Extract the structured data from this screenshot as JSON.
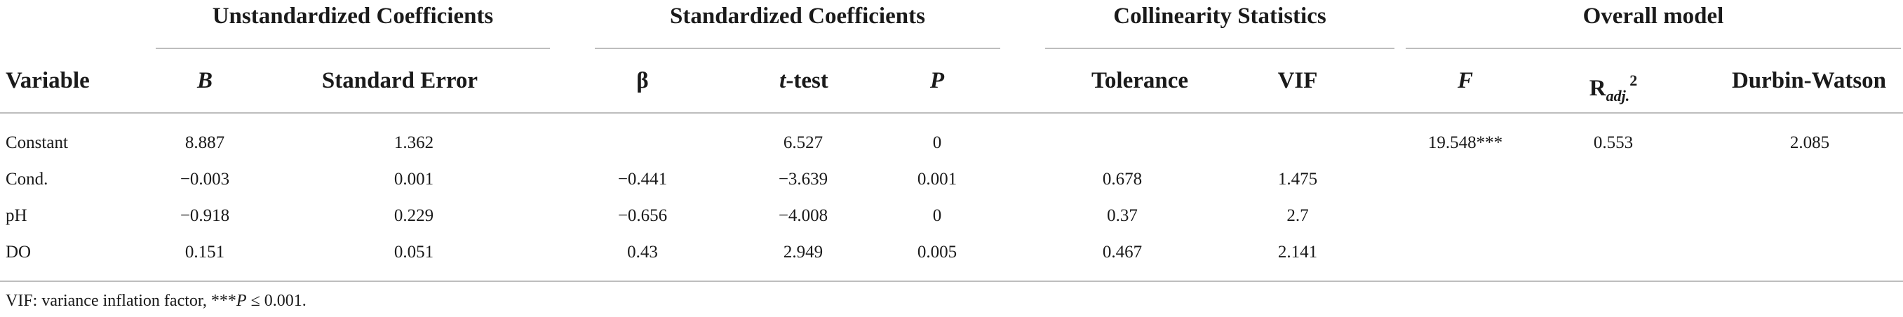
{
  "groups": {
    "unstandardized": "Unstandardized Coefficients",
    "standardized": "Standardized Coefficients",
    "collinearity": "Collinearity Statistics",
    "overall": "Overall model"
  },
  "headers": {
    "variable": "Variable",
    "b": "B",
    "std_error": "Standard Error",
    "beta": "β",
    "t_italic": "t",
    "t_rest": "-test",
    "p": "P",
    "tolerance": "Tolerance",
    "vif": "VIF",
    "f": "F",
    "radj_base": "R",
    "radj_sub": "adj.",
    "radj_sup": "2",
    "durbin_watson": "Durbin-Watson"
  },
  "rows": [
    {
      "variable": "Constant",
      "b": "8.887",
      "se": "1.362",
      "beta": "",
      "t": "6.527",
      "p": "0",
      "tol": "",
      "vif": "",
      "f": "19.548***",
      "radj": "0.553",
      "dw": "2.085"
    },
    {
      "variable": "Cond.",
      "b": "−0.003",
      "se": "0.001",
      "beta": "−0.441",
      "t": "−3.639",
      "p": "0.001",
      "tol": "0.678",
      "vif": "1.475",
      "f": "",
      "radj": "",
      "dw": ""
    },
    {
      "variable": "pH",
      "b": "−0.918",
      "se": "0.229",
      "beta": "−0.656",
      "t": "−4.008",
      "p": "0",
      "tol": "0.37",
      "vif": "2.7",
      "f": "",
      "radj": "",
      "dw": ""
    },
    {
      "variable": "DO",
      "b": "0.151",
      "se": "0.051",
      "beta": "0.43",
      "t": "2.949",
      "p": "0.005",
      "tol": "0.467",
      "vif": "2.141",
      "f": "",
      "radj": "",
      "dw": ""
    }
  ],
  "footnote": {
    "text": "VIF: variance inflation factor, ***",
    "p_italic": "P",
    "tail": " ≤ 0.001."
  }
}
